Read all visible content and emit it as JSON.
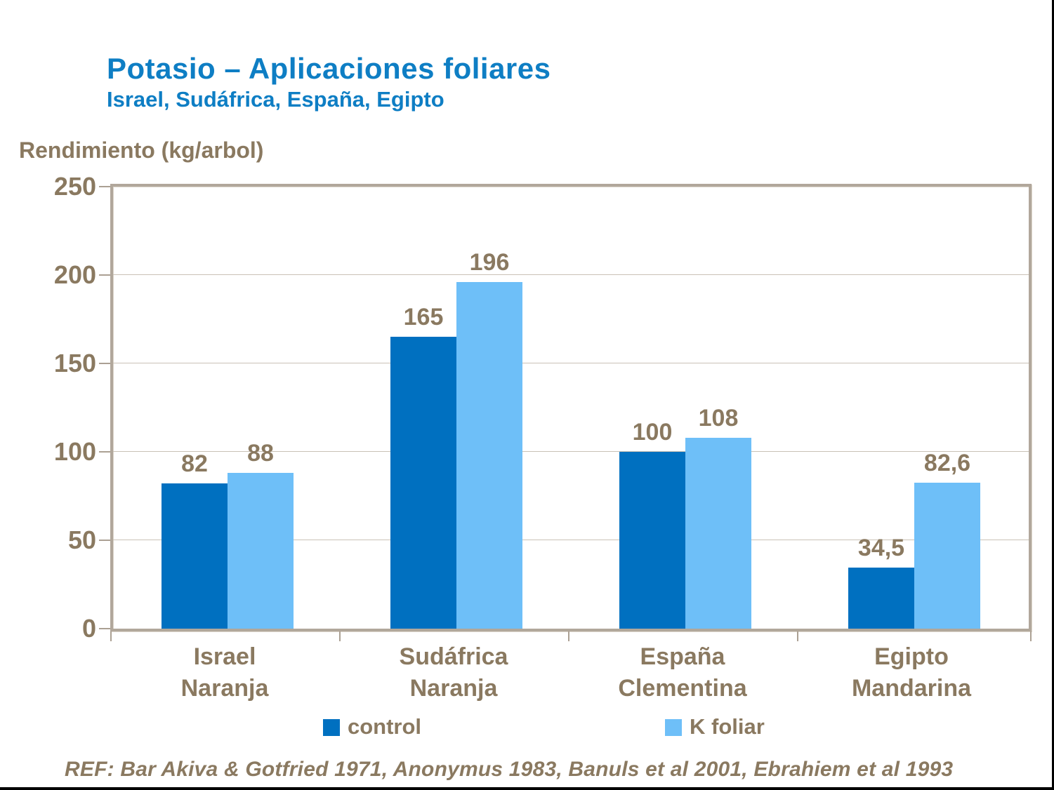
{
  "header": {
    "title": "Potasio – Aplicaciones foliares",
    "subtitle": "Israel, Sudáfrica, España, Egipto"
  },
  "axis_title": "Rendimiento (kg/arbol)",
  "footer": "REF: Bar Akiva & Gotfried 1971, Anonymus 1983, Banuls et al 2001, Ebrahiem et al 1993",
  "legend": [
    {
      "label": "control",
      "color": "#0070C0"
    },
    {
      "label": "K foliar",
      "color": "#6EBFF8"
    }
  ],
  "colors": {
    "title_blue": "#0E7EC4",
    "text_brown": "#8A7960",
    "control_bar": "#0070C0",
    "k_foliar_bar": "#6EBFF8",
    "gridline": "#C9C1B6",
    "plot_frame": "#B1A79B",
    "edge_border": "#000000"
  },
  "chart_data": {
    "type": "bar",
    "title": "Potasio – Aplicaciones foliares",
    "subtitle": "Israel, Sudáfrica, España, Egipto",
    "ylabel": "Rendimiento (kg/arbol)",
    "xlabel": "",
    "ylim": [
      0,
      250
    ],
    "yticks": [
      0,
      50,
      100,
      150,
      200,
      250
    ],
    "grid": true,
    "legend_position": "bottom",
    "categories": [
      [
        "Israel",
        "Naranja"
      ],
      [
        "Sudáfrica",
        "Naranja"
      ],
      [
        "España",
        "Clementina"
      ],
      [
        "Egipto",
        "Mandarina"
      ]
    ],
    "series": [
      {
        "name": "control",
        "color": "#0070C0",
        "values": [
          82,
          165,
          100,
          34.5
        ],
        "labels": [
          "82",
          "165",
          "100",
          "34,5"
        ]
      },
      {
        "name": "K foliar",
        "color": "#6EBFF8",
        "values": [
          88,
          196,
          108,
          82.6
        ],
        "labels": [
          "88",
          "196",
          "108",
          "82,6"
        ]
      }
    ]
  }
}
